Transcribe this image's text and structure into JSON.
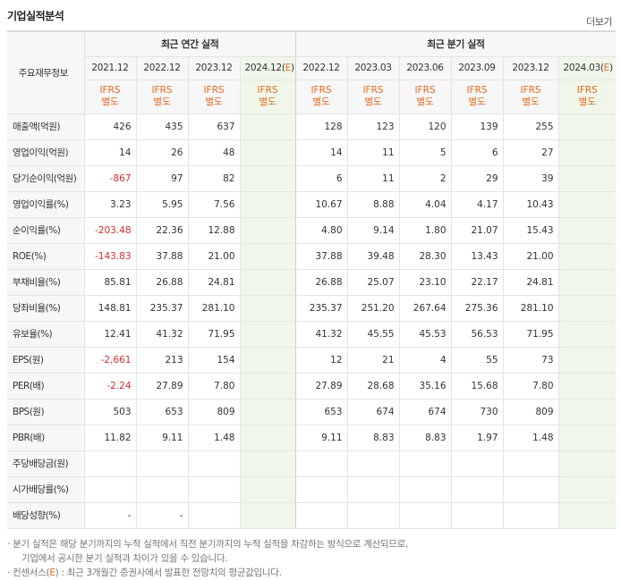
{
  "header": {
    "title": "기업실적분석",
    "more_label": "더보기"
  },
  "table": {
    "row_header_label": "주요재무정보",
    "annual_group_label": "최근 연간 실적",
    "quarter_group_label": "최근 분기 실적",
    "annual_periods": [
      "2021.12",
      "2022.12",
      "2023.12",
      "2024.12(E)"
    ],
    "quarter_periods": [
      "2022.12",
      "2023.03",
      "2023.06",
      "2023.09",
      "2023.12",
      "2024.03(E)"
    ],
    "ifrs_line1": "IFRS",
    "ifrs_line2": "별도",
    "rows": [
      {
        "label": "매출액(억원)",
        "annual": [
          "426",
          "435",
          "637",
          ""
        ],
        "quarter": [
          "128",
          "123",
          "120",
          "139",
          "255",
          ""
        ]
      },
      {
        "label": "영업이익(억원)",
        "annual": [
          "14",
          "26",
          "48",
          ""
        ],
        "quarter": [
          "14",
          "11",
          "5",
          "6",
          "27",
          ""
        ]
      },
      {
        "label": "당기순이익(억원)",
        "annual": [
          "-867",
          "97",
          "82",
          ""
        ],
        "quarter": [
          "6",
          "11",
          "2",
          "29",
          "39",
          ""
        ]
      },
      {
        "label": "영업이익률(%)",
        "annual": [
          "3.23",
          "5.95",
          "7.56",
          ""
        ],
        "quarter": [
          "10.67",
          "8.88",
          "4.04",
          "4.17",
          "10.43",
          ""
        ]
      },
      {
        "label": "순이익률(%)",
        "annual": [
          "-203.48",
          "22.36",
          "12.88",
          ""
        ],
        "quarter": [
          "4.80",
          "9.14",
          "1.80",
          "21.07",
          "15.43",
          ""
        ]
      },
      {
        "label": "ROE(%)",
        "annual": [
          "-143.83",
          "37.88",
          "21.00",
          ""
        ],
        "quarter": [
          "37.88",
          "39.48",
          "28.30",
          "13.43",
          "21.00",
          ""
        ]
      },
      {
        "label": "부채비율(%)",
        "annual": [
          "85.81",
          "26.88",
          "24.81",
          ""
        ],
        "quarter": [
          "26.88",
          "25.07",
          "23.10",
          "22.17",
          "24.81",
          ""
        ]
      },
      {
        "label": "당좌비율(%)",
        "annual": [
          "148.81",
          "235.37",
          "281.10",
          ""
        ],
        "quarter": [
          "235.37",
          "251.20",
          "267.64",
          "275.36",
          "281.10",
          ""
        ]
      },
      {
        "label": "유보율(%)",
        "annual": [
          "12.41",
          "41.32",
          "71.95",
          ""
        ],
        "quarter": [
          "41.32",
          "45.55",
          "45.53",
          "56.53",
          "71.95",
          ""
        ]
      },
      {
        "label": "EPS(원)",
        "annual": [
          "-2,661",
          "213",
          "154",
          ""
        ],
        "quarter": [
          "12",
          "21",
          "4",
          "55",
          "73",
          ""
        ]
      },
      {
        "label": "PER(배)",
        "annual": [
          "-2.24",
          "27.89",
          "7.80",
          ""
        ],
        "quarter": [
          "27.89",
          "28.68",
          "35.16",
          "15.68",
          "7.80",
          ""
        ]
      },
      {
        "label": "BPS(원)",
        "annual": [
          "503",
          "653",
          "809",
          ""
        ],
        "quarter": [
          "653",
          "674",
          "674",
          "730",
          "809",
          ""
        ]
      },
      {
        "label": "PBR(배)",
        "annual": [
          "11.82",
          "9.11",
          "1.48",
          ""
        ],
        "quarter": [
          "9.11",
          "8.83",
          "8.83",
          "1.97",
          "1.48",
          ""
        ]
      },
      {
        "label": "주당배당금(원)",
        "annual": [
          "",
          "",
          "",
          ""
        ],
        "quarter": [
          "",
          "",
          "",
          "",
          "",
          ""
        ]
      },
      {
        "label": "시가배당률(%)",
        "annual": [
          "",
          "",
          "",
          ""
        ],
        "quarter": [
          "",
          "",
          "",
          "",
          "",
          ""
        ]
      },
      {
        "label": "배당성향(%)",
        "annual": [
          "-",
          "-",
          "",
          ""
        ],
        "quarter": [
          "",
          "",
          "",
          "",
          "",
          ""
        ]
      }
    ]
  },
  "notes": {
    "line1": "· 분기 실적은 해당 분기까지의 누적 실적에서 직전 분기까지의 누적 실적을 차감하는 방식으로 계산되므로,",
    "line2": "기업에서 공시한 분기 실적과 차이가 있을 수 있습니다.",
    "line3_prefix": "· 컨센서스(",
    "line3_e": "E",
    "line3_suffix": ") : 최근 3개월간 증권사에서 발표한 전망치의 평균값입니다."
  },
  "colors": {
    "accent": "#e8681d",
    "negative": "#d52c2c",
    "estimate_bg": "#f3f8ee"
  }
}
